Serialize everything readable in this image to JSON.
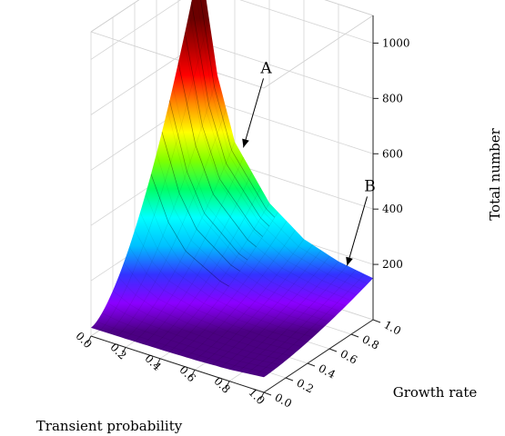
{
  "chart_data": {
    "type": "surface3d",
    "title": "",
    "xlabel": "Transient probability",
    "ylabel": "Growth rate",
    "zlabel": "Total number",
    "xlim": [
      0.0,
      1.0
    ],
    "ylim": [
      0.0,
      1.0
    ],
    "zlim": [
      0,
      1100
    ],
    "x_ticks": [
      "0.0",
      "0.2",
      "0.4",
      "0.6",
      "0.8",
      "1.0"
    ],
    "y_ticks": [
      "0.0",
      "0.2",
      "0.4",
      "0.6",
      "0.8",
      "1.0"
    ],
    "z_ticks": [
      "200",
      "400",
      "600",
      "800",
      "1000"
    ],
    "grid": true,
    "colormap": [
      "#4b0082",
      "#8b00ff",
      "#3333ff",
      "#00bfff",
      "#00ffff",
      "#00ff66",
      "#7fff00",
      "#ffff00",
      "#ff8c00",
      "#ff0000",
      "#b00000",
      "#6b0000"
    ],
    "z_values_at_y0": [
      {
        "x": 0.0,
        "z": 30
      },
      {
        "x": 0.2,
        "z": 31
      },
      {
        "x": 0.4,
        "z": 33
      },
      {
        "x": 0.6,
        "z": 36
      },
      {
        "x": 0.8,
        "z": 42
      },
      {
        "x": 1.0,
        "z": 55
      }
    ],
    "z_values_at_y1": [
      {
        "x": 0.0,
        "z": 1100
      },
      {
        "x": 0.1,
        "z": 700
      },
      {
        "x": 0.2,
        "z": 480
      },
      {
        "x": 0.4,
        "z": 300
      },
      {
        "x": 0.6,
        "z": 210
      },
      {
        "x": 0.8,
        "z": 170
      },
      {
        "x": 1.0,
        "z": 150
      }
    ],
    "annotations": [
      {
        "label": "A",
        "x": 0.25,
        "y": 1.0,
        "z": 470
      },
      {
        "label": "B",
        "x": 0.85,
        "y": 1.0,
        "z": 165
      }
    ]
  }
}
